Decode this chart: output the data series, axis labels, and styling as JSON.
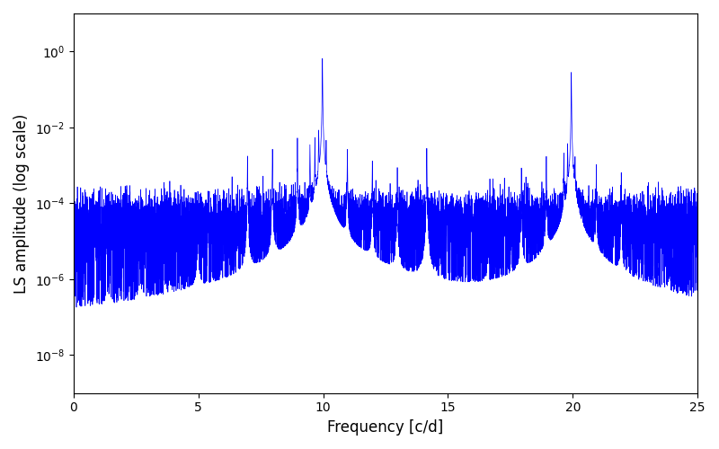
{
  "title": "",
  "xlabel": "Frequency [c/d]",
  "ylabel": "LS amplitude (log scale)",
  "xlim": [
    0,
    25
  ],
  "ylim": [
    1e-09,
    10
  ],
  "line_color": "#0000ff",
  "line_width": 0.5,
  "background_color": "#ffffff",
  "freq_min": 0.0,
  "freq_max": 25.0,
  "n_points": 8000,
  "main_freq1": 9.97,
  "main_amp1": 0.65,
  "main_freq2": 19.94,
  "main_amp2": 0.28,
  "main_freq3": 4.98,
  "main_amp3": 0.0002,
  "main_freq4": 14.15,
  "main_amp4": 0.003,
  "noise_floor": 5e-05,
  "seed": 137,
  "figsize": [
    8.0,
    5.0
  ],
  "dpi": 100,
  "yticks": [
    1e-08,
    1e-06,
    0.0001,
    0.01,
    1.0
  ]
}
